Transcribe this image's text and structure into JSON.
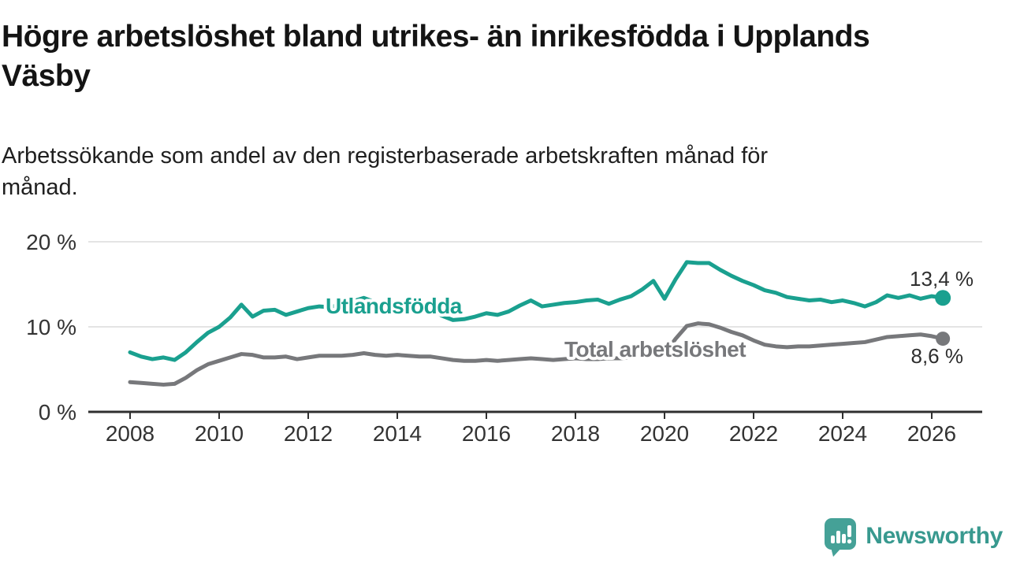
{
  "header": {
    "title_line1": "Högre arbetslöshet bland utrikes- än inrikesfödda i Upplands",
    "title_line2": "Väsby",
    "subtitle_line1": "Arbetssökande som andel av den registerbaserade arbetskraften månad för",
    "subtitle_line2": "månad."
  },
  "chart_data": {
    "type": "line",
    "title": "Högre arbetslöshet bland utrikes- än inrikesfödda i Upplands Väsby",
    "subtitle": "Arbetssökande som andel av den registerbaserade arbetskraften månad för månad.",
    "unit": "%",
    "grid": "horizontal",
    "x_start": 2008,
    "x_step": 0.25,
    "xlim": [
      2007.05,
      2027.1
    ],
    "ylim": [
      0,
      20
    ],
    "x_ticks": [
      2008,
      2010,
      2012,
      2014,
      2016,
      2018,
      2020,
      2022,
      2024,
      2026
    ],
    "y_ticks": [
      {
        "value": 0,
        "label": "0 %"
      },
      {
        "value": 10,
        "label": "10 %"
      },
      {
        "value": 20,
        "label": "20 %"
      }
    ],
    "series": [
      {
        "name": "Utlandsfödda",
        "color": "#1aa08f",
        "end_label": "13,4 %",
        "last_value": 13.4,
        "values": [
          7.0,
          6.5,
          6.2,
          6.4,
          6.1,
          7.0,
          8.2,
          9.3,
          10.0,
          11.1,
          12.6,
          11.2,
          11.9,
          12.0,
          11.4,
          11.8,
          12.2,
          12.4,
          12.3,
          12.7,
          13.0,
          13.4,
          12.9,
          12.4,
          12.6,
          12.8,
          12.5,
          12.2,
          11.3,
          10.8,
          10.9,
          11.2,
          11.6,
          11.4,
          11.8,
          12.5,
          13.1,
          12.4,
          12.6,
          12.8,
          12.9,
          13.1,
          13.2,
          12.7,
          13.2,
          13.6,
          14.4,
          15.4,
          13.3,
          15.6,
          17.6,
          17.5,
          17.5,
          16.7,
          16.0,
          15.4,
          14.9,
          14.3,
          14.0,
          13.5,
          13.3,
          13.1,
          13.2,
          12.9,
          13.1,
          12.8,
          12.4,
          12.9,
          13.7,
          13.4,
          13.7,
          13.3,
          13.6,
          13.4
        ]
      },
      {
        "name": "Total arbetslöshet",
        "color": "#77787b",
        "end_label": "8,6 %",
        "last_value": 8.6,
        "values": [
          3.5,
          3.4,
          3.3,
          3.2,
          3.3,
          4.0,
          4.9,
          5.6,
          6.0,
          6.4,
          6.8,
          6.7,
          6.4,
          6.4,
          6.5,
          6.2,
          6.4,
          6.6,
          6.6,
          6.6,
          6.7,
          6.9,
          6.7,
          6.6,
          6.7,
          6.6,
          6.5,
          6.5,
          6.3,
          6.1,
          6.0,
          6.0,
          6.1,
          6.0,
          6.1,
          6.2,
          6.3,
          6.2,
          6.1,
          6.2,
          6.3,
          6.2,
          6.2,
          6.3,
          6.3,
          6.4,
          6.6,
          6.7,
          6.8,
          8.6,
          10.1,
          10.4,
          10.3,
          9.9,
          9.4,
          9.0,
          8.4,
          7.9,
          7.7,
          7.6,
          7.7,
          7.7,
          7.8,
          7.9,
          8.0,
          8.1,
          8.2,
          8.5,
          8.8,
          8.9,
          9.0,
          9.1,
          8.9,
          8.6
        ]
      }
    ]
  },
  "footer": {
    "brand": "Newsworthy",
    "brand_color": "#38998f",
    "brand_icon_color": "#45a197"
  }
}
